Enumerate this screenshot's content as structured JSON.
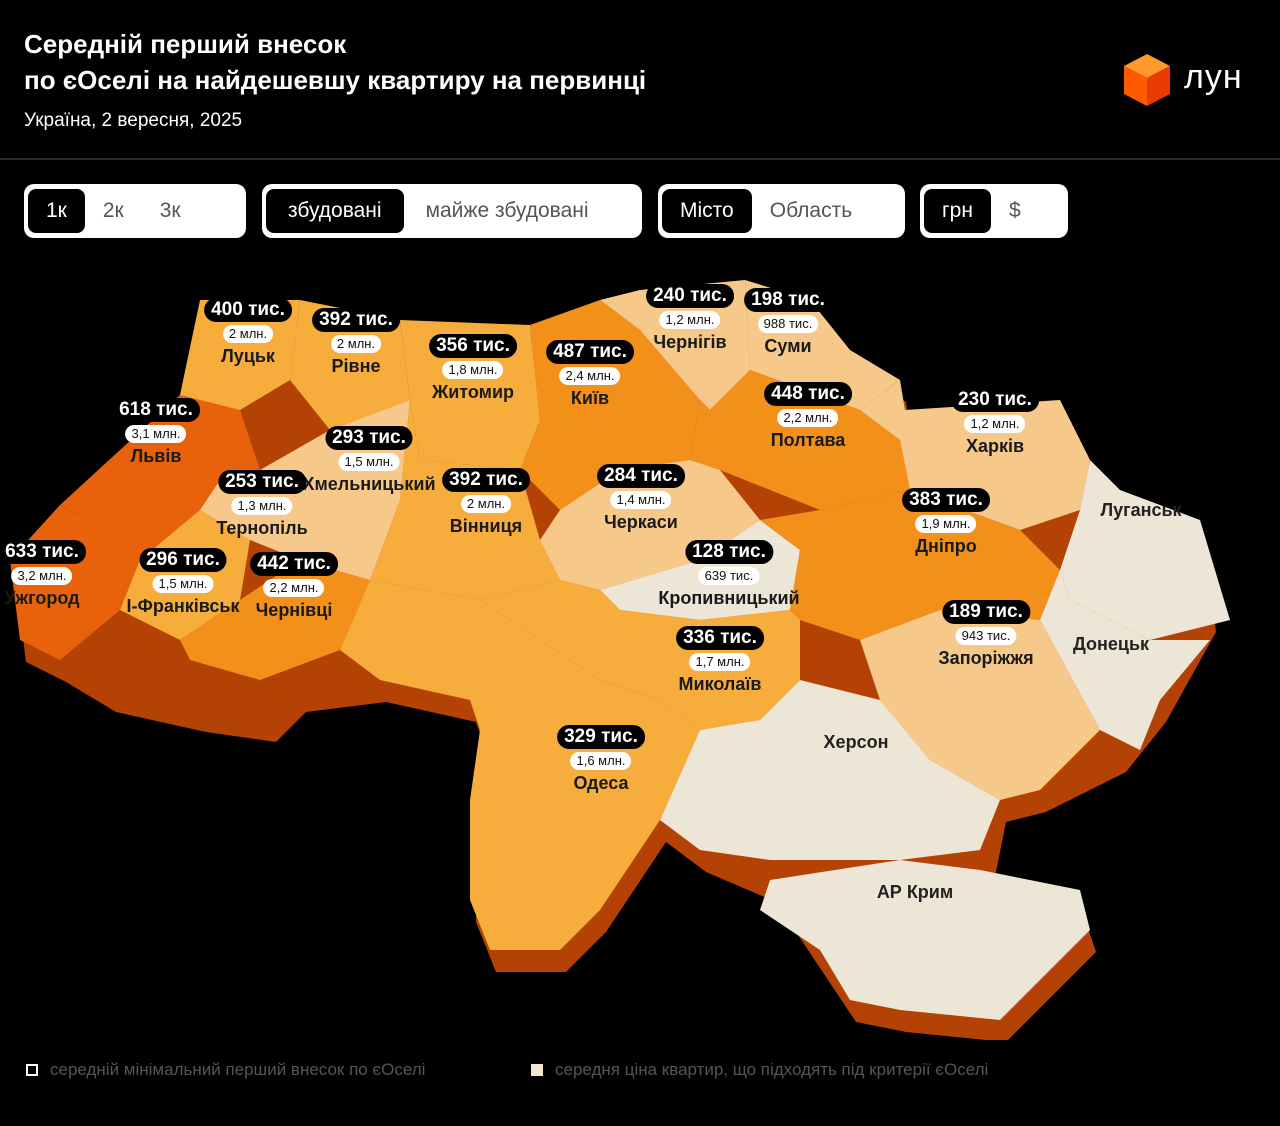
{
  "header": {
    "title_line1": "Середній перший внесок",
    "title_line2": "по єОселі на найдешевшу квартиру на первинці",
    "subtitle": "Україна, 2 вересня, 2025",
    "logo_text": "лун",
    "logo_icon": "cube-icon"
  },
  "toggles": {
    "rooms": [
      "1к",
      "2к",
      "3к"
    ],
    "rooms_selected": "1к",
    "status": [
      "збудовані",
      "майже збудовані"
    ],
    "status_selected": "збудовані",
    "scope": [
      "Місто",
      "Область"
    ],
    "scope_selected": "Місто",
    "currency": [
      "грн",
      "$"
    ],
    "currency_selected": "грн"
  },
  "regions": [
    {
      "city": "Луцьк",
      "down": "400 тис.",
      "price": "2 млн."
    },
    {
      "city": "Рівне",
      "down": "392 тис.",
      "price": "2 млн."
    },
    {
      "city": "Житомир",
      "down": "356 тис.",
      "price": "1,8 млн."
    },
    {
      "city": "Київ",
      "down": "487 тис.",
      "price": "2,4 млн."
    },
    {
      "city": "Чернігів",
      "down": "240 тис.",
      "price": "1,2 млн."
    },
    {
      "city": "Суми",
      "down": "198 тис.",
      "price": "988 тис."
    },
    {
      "city": "Львів",
      "down": "618 тис.",
      "price": "3,1 млн."
    },
    {
      "city": "Хмельницький",
      "down": "293 тис.",
      "price": "1,5 млн."
    },
    {
      "city": "Полтава",
      "down": "448 тис.",
      "price": "2,2 млн."
    },
    {
      "city": "Харків",
      "down": "230 тис.",
      "price": "1,2 млн."
    },
    {
      "city": "Тернопіль",
      "down": "253 тис.",
      "price": "1,3 млн."
    },
    {
      "city": "Вінниця",
      "down": "392 тис.",
      "price": "2 млн."
    },
    {
      "city": "Черкаси",
      "down": "284 тис.",
      "price": "1,4 млн."
    },
    {
      "city": "Дніпро",
      "down": "383 тис.",
      "price": "1,9 млн."
    },
    {
      "city": "Ужгород",
      "down": "633 тис.",
      "price": "3,2 млн."
    },
    {
      "city": "І-Франківськ",
      "down": "296 тис.",
      "price": "1,5 млн."
    },
    {
      "city": "Чернівці",
      "down": "442 тис.",
      "price": "2,2 млн."
    },
    {
      "city": "Кропивницький",
      "down": "128 тис.",
      "price": "639 тис."
    },
    {
      "city": "Запоріжжя",
      "down": "189 тис.",
      "price": "943 тис."
    },
    {
      "city": "Миколаїв",
      "down": "336 тис.",
      "price": "1,7 млн."
    },
    {
      "city": "Одеса",
      "down": "329 тис.",
      "price": "1,6 млн."
    }
  ],
  "occupied": [
    "Луганськ",
    "Донецьк",
    "Херсон",
    "АР Крим"
  ],
  "legend": {
    "item1": "середній мінімальний перший внесок по єОселі",
    "item2": "середня ціна квартир, що підходять під критерії єОселі"
  },
  "colors": {
    "dark_orange": "#e8620c",
    "mid_orange": "#f2901a",
    "light_orange": "#f7ad3c",
    "pale_orange": "#f6c98a",
    "occupied": "#ede5d6",
    "side_shadow": "#c44a06"
  }
}
